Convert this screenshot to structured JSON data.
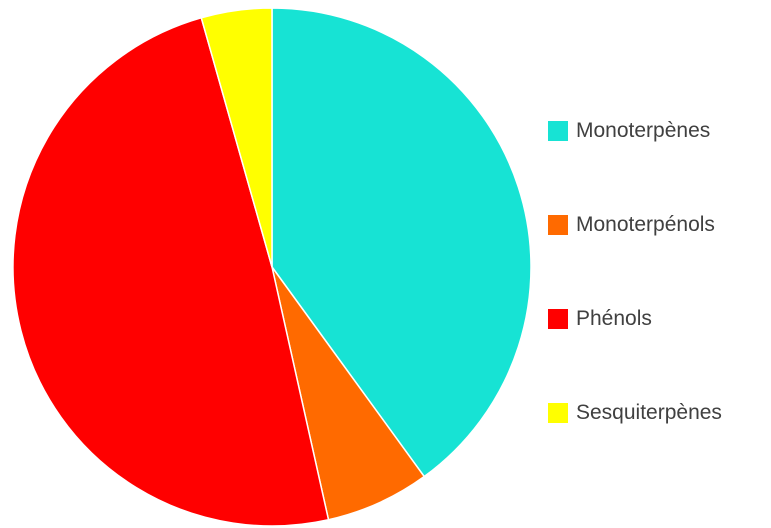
{
  "chart_data": {
    "type": "pie",
    "title": "",
    "slices": [
      {
        "label": "Monoterpènes",
        "value": 40.0,
        "color": "#17E3D4"
      },
      {
        "label": "Monoterpénols",
        "value": 6.5,
        "color": "#FF6A00"
      },
      {
        "label": "Phénols",
        "value": 49.1,
        "color": "#FF0000"
      },
      {
        "label": "Sesquiterpènes",
        "value": 4.4,
        "color": "#FFFF00"
      }
    ],
    "start_angle_deg": 0,
    "direction": "clockwise",
    "legend_position": "right"
  }
}
